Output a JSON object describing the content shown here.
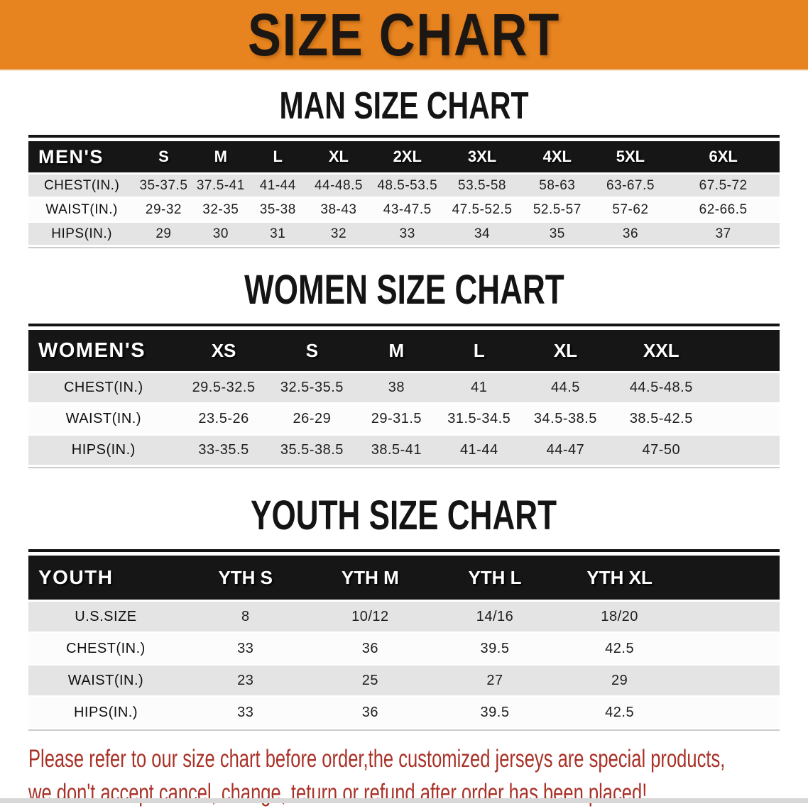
{
  "banner": {
    "title": "SIZE CHART"
  },
  "colors": {
    "banner_bg": "#e8841f",
    "header_bar": "#161616",
    "row_gray": "#e4e4e4",
    "row_white": "#fcfcfc",
    "notice_red": "#a93127"
  },
  "sections": [
    {
      "heading": "MAN SIZE CHART",
      "table": {
        "label": "MEN'S",
        "columns": [
          "S",
          "M",
          "L",
          "XL",
          "2XL",
          "3XL",
          "4XL",
          "5XL",
          "6XL"
        ],
        "rows": [
          {
            "label": "CHEST(IN.)",
            "values": [
              "35-37.5",
              "37.5-41",
              "41-44",
              "44-48.5",
              "48.5-53.5",
              "53.5-58",
              "58-63",
              "63-67.5",
              "67.5-72"
            ]
          },
          {
            "label": "WAIST(IN.)",
            "values": [
              "29-32",
              "32-35",
              "35-38",
              "38-43",
              "43-47.5",
              "47.5-52.5",
              "52.5-57",
              "57-62",
              "62-66.5"
            ]
          },
          {
            "label": "HIPS(IN.)",
            "values": [
              "29",
              "30",
              "31",
              "32",
              "33",
              "34",
              "35",
              "36",
              "37"
            ]
          }
        ]
      }
    },
    {
      "heading": "WOMEN SIZE CHART",
      "table": {
        "label": "WOMEN'S",
        "columns": [
          "XS",
          "S",
          "M",
          "L",
          "XL",
          "XXL"
        ],
        "rows": [
          {
            "label": "CHEST(IN.)",
            "values": [
              "29.5-32.5",
              "32.5-35.5",
              "38",
              "41",
              "44.5",
              "44.5-48.5"
            ]
          },
          {
            "label": "WAIST(IN.)",
            "values": [
              "23.5-26",
              "26-29",
              "29-31.5",
              "31.5-34.5",
              "34.5-38.5",
              "38.5-42.5"
            ]
          },
          {
            "label": "HIPS(IN.)",
            "values": [
              "33-35.5",
              "35.5-38.5",
              "38.5-41",
              "41-44",
              "44-47",
              "47-50"
            ]
          }
        ]
      }
    },
    {
      "heading": "YOUTH SIZE CHART",
      "table": {
        "label": "YOUTH",
        "columns": [
          "YTH S",
          "YTH M",
          "YTH L",
          "YTH XL"
        ],
        "rows": [
          {
            "label": "U.S.SIZE",
            "values": [
              "8",
              "10/12",
              "14/16",
              "18/20"
            ]
          },
          {
            "label": "CHEST(IN.)",
            "values": [
              "33",
              "36",
              "39.5",
              "42.5"
            ]
          },
          {
            "label": "WAIST(IN.)",
            "values": [
              "23",
              "25",
              "27",
              "29"
            ]
          },
          {
            "label": "HIPS(IN.)",
            "values": [
              "33",
              "36",
              "39.5",
              "42.5"
            ]
          }
        ]
      }
    }
  ],
  "notice": {
    "lines": [
      "Please refer to our size chart before order,the customized jerseys are special products,",
      "we don't accept cancel, change, teturn or refund after order has been placed!"
    ]
  }
}
